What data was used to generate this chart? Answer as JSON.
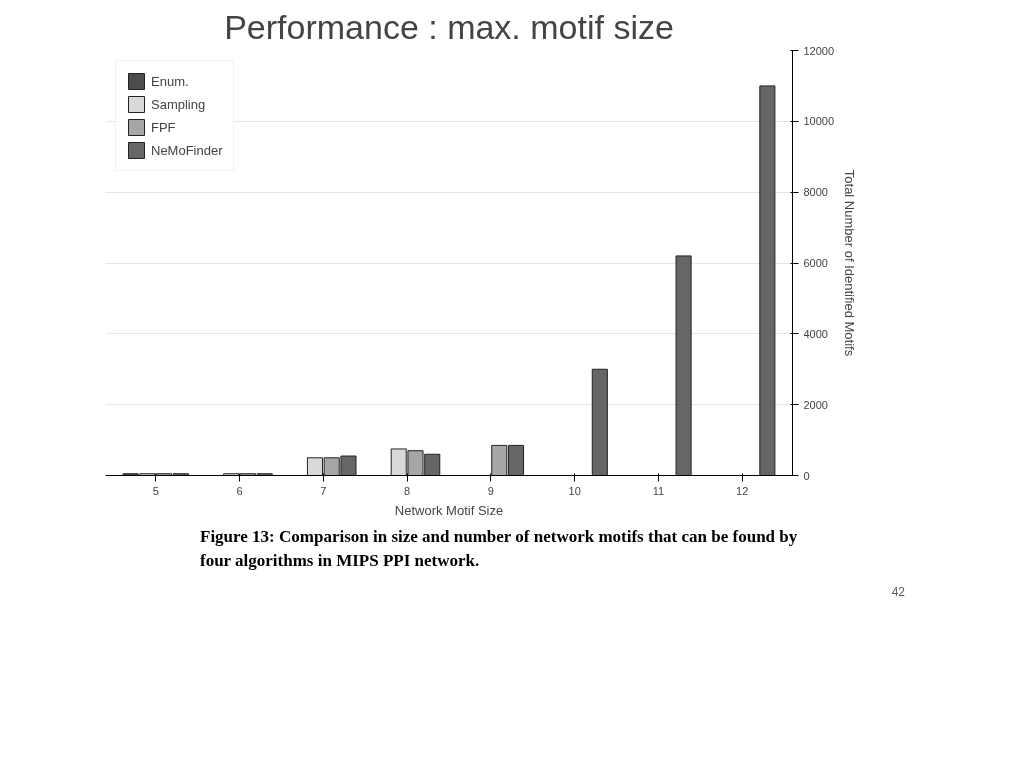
{
  "chart_data": {
    "type": "bar",
    "title": "Performance : max. motif size",
    "xlabel": "Network Motif Size",
    "ylabel": "Total Number of Identified Motifs",
    "categories": [
      "5",
      "6",
      "7",
      "8",
      "9",
      "10",
      "11",
      "12"
    ],
    "series": [
      {
        "name": "Enum.",
        "color": "#4d4d4d",
        "values": [
          50,
          null,
          null,
          null,
          null,
          null,
          null,
          null
        ]
      },
      {
        "name": "Sampling",
        "color": "#d9d9d9",
        "values": [
          50,
          50,
          500,
          750,
          null,
          null,
          null,
          null
        ]
      },
      {
        "name": "FPF",
        "color": "#a6a6a6",
        "values": [
          50,
          50,
          500,
          700,
          850,
          null,
          null,
          null
        ]
      },
      {
        "name": "NeMoFinder",
        "color": "#666666",
        "values": [
          50,
          50,
          550,
          600,
          850,
          3000,
          6200,
          11000
        ]
      }
    ],
    "ylim": [
      0,
      12000
    ],
    "yticks": [
      0,
      2000,
      4000,
      6000,
      8000,
      10000,
      12000
    ],
    "grid": "y",
    "legend": "top left",
    "annotations": [
      "Figure 13: Comparison in size and number of network motifs that can be found by four algorithms in MIPS PPI network.",
      "42"
    ]
  }
}
